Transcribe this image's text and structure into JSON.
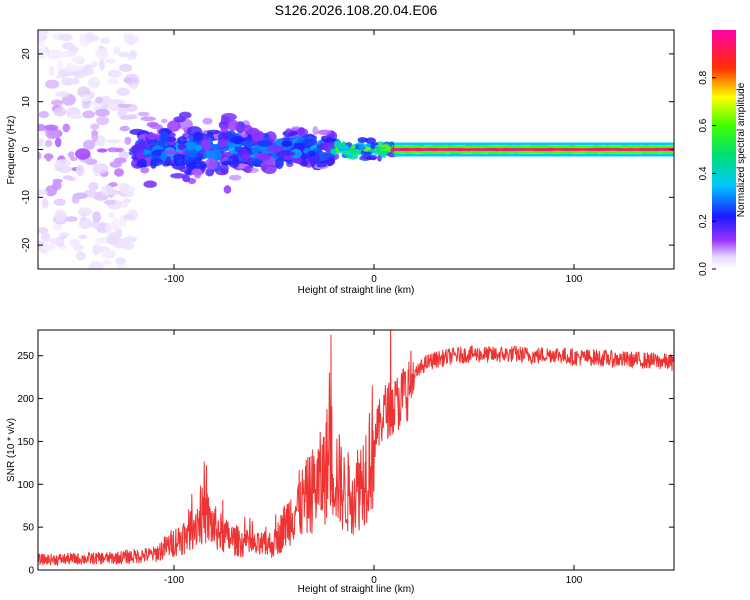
{
  "title": "S126.2026.108.20.04.E06",
  "chart_data": [
    {
      "type": "heatmap",
      "title": "S126.2026.108.20.04.E06",
      "xlabel": "Height of straight line (km)",
      "ylabel": "Frequency (Hz)",
      "xlim": [
        -168,
        150
      ],
      "ylim": [
        -25,
        25
      ],
      "xticks": [
        -100,
        0,
        100
      ],
      "yticks": [
        -20,
        -10,
        0,
        10,
        20
      ],
      "colorbar": {
        "label": "Normalized spectral amplitude",
        "range": [
          0,
          1
        ],
        "ticks": [
          "0.0",
          "0.2",
          "0.4",
          "0.6",
          "0.8"
        ],
        "colormap": "rainbow (white-violet-blue-cyan-green-yellow-red-magenta)"
      },
      "description_segments": [
        {
          "x_range": [
            -168,
            -120
          ],
          "freq_spread_hz": 25,
          "amplitude": 0.1
        },
        {
          "x_range": [
            -120,
            -60
          ],
          "freq_spread_hz": 10,
          "amplitude": 0.3
        },
        {
          "x_range": [
            -60,
            -20
          ],
          "freq_spread_hz": 6,
          "amplitude": 0.35
        },
        {
          "x_range": [
            -20,
            10
          ],
          "freq_spread_hz": 3,
          "amplitude": 0.6
        },
        {
          "x_range": [
            10,
            150
          ],
          "freq_spread_hz": 1,
          "amplitude": 0.95
        }
      ]
    },
    {
      "type": "line",
      "xlabel": "Height of straight line (km)",
      "ylabel": "SNR (10 * v/v)",
      "xlim": [
        -168,
        150
      ],
      "ylim": [
        0,
        280
      ],
      "xticks": [
        -100,
        0,
        100
      ],
      "yticks": [
        0,
        50,
        100,
        150,
        200,
        250
      ],
      "series": [
        {
          "name": "SNR",
          "color": "#ee3333",
          "x": [
            -168,
            -150,
            -130,
            -110,
            -95,
            -85,
            -80,
            -75,
            -70,
            -60,
            -50,
            -40,
            -35,
            -30,
            -25,
            -22,
            -20,
            -15,
            -10,
            -5,
            0,
            5,
            10,
            15,
            20,
            25,
            30,
            40,
            50,
            60,
            70,
            80,
            90,
            100,
            110,
            120,
            130,
            140,
            150
          ],
          "values": [
            12,
            13,
            14,
            18,
            40,
            65,
            50,
            40,
            35,
            28,
            30,
            70,
            80,
            95,
            110,
            140,
            120,
            90,
            90,
            110,
            150,
            185,
            190,
            205,
            225,
            240,
            245,
            250,
            252,
            251,
            252,
            250,
            252,
            248,
            248,
            246,
            245,
            244,
            242
          ]
        }
      ]
    }
  ]
}
